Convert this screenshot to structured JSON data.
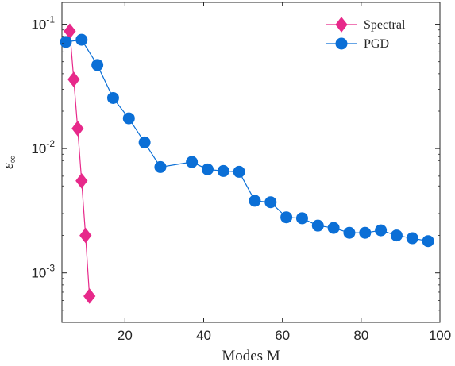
{
  "chart_data": {
    "type": "line",
    "xlabel": "Modes M",
    "ylabel_base": "ε",
    "ylabel_sub": "∞",
    "xlim": [
      4,
      100
    ],
    "ylim": [
      0.0004,
      0.15
    ],
    "yscale": "log",
    "xticks": [
      20,
      40,
      60,
      80,
      100
    ],
    "xtick_labels": [
      "20",
      "40",
      "60",
      "80",
      "100"
    ],
    "yticks": [
      0.001,
      0.01,
      0.1
    ],
    "ytick_bases": [
      "10",
      "10",
      "10"
    ],
    "ytick_exps": [
      "-3",
      "-2",
      "-1"
    ],
    "grid": false,
    "legend_position": "top-right",
    "series": [
      {
        "name": "Spectral",
        "color": "#e7298a",
        "marker": "diamond",
        "x": [
          6,
          7,
          8,
          9,
          10,
          11
        ],
        "y": [
          0.088,
          0.036,
          0.0145,
          0.0055,
          0.002,
          0.00065
        ]
      },
      {
        "name": "PGD",
        "color": "#0b6fd6",
        "marker": "circle",
        "x": [
          5,
          9,
          13,
          17,
          21,
          25,
          29,
          37,
          41,
          45,
          49,
          53,
          57,
          61,
          65,
          69,
          73,
          77,
          81,
          85,
          89,
          93,
          97
        ],
        "y": [
          0.072,
          0.075,
          0.047,
          0.0255,
          0.0175,
          0.0112,
          0.0071,
          0.0078,
          0.0068,
          0.0066,
          0.0065,
          0.0038,
          0.0037,
          0.0028,
          0.00275,
          0.0024,
          0.0023,
          0.0021,
          0.0021,
          0.0022,
          0.002,
          0.0019,
          0.0018
        ]
      }
    ]
  }
}
